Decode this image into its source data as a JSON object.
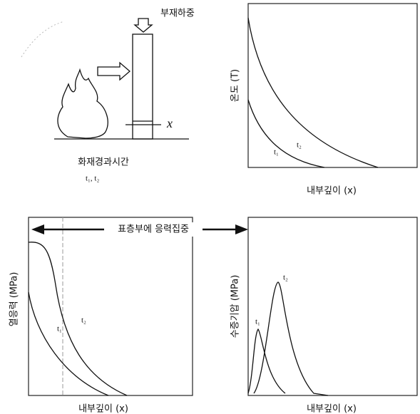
{
  "illustration": {
    "load_label": "부재하중",
    "depth_symbol": "x",
    "caption": "화재경과시간",
    "times": "t₁, t₂"
  },
  "panels": [
    {
      "y_label": "온도 (T)",
      "x_label": "내부깊이 (x)",
      "curve_labels": [
        "t₁",
        "t₂"
      ]
    },
    {
      "y_label": "열응력 (MPa)",
      "x_label": "내부깊이 (x)",
      "curve_labels": [
        "t₁",
        "t₂"
      ],
      "annotation": "표층부에 응력집중"
    },
    {
      "y_label": "수증기압 (MPa)",
      "x_label": "내부깊이 (x)",
      "curve_labels": [
        "t₁",
        "t₂"
      ]
    }
  ]
}
